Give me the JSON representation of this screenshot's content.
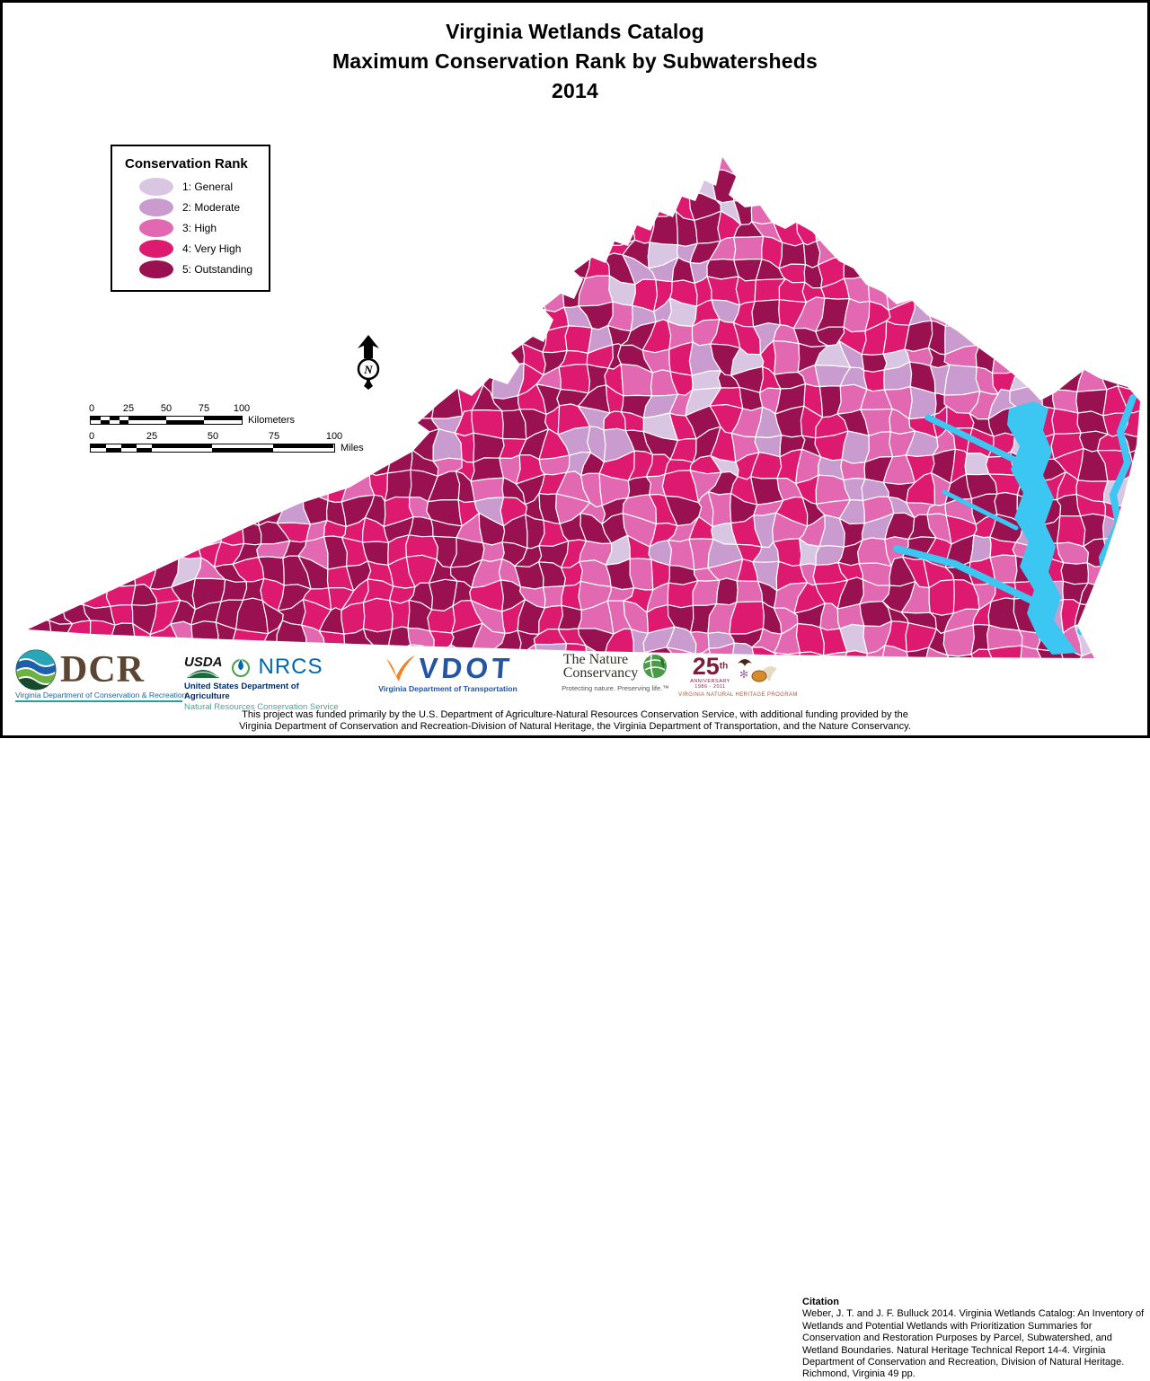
{
  "title": {
    "line1": "Virginia Wetlands Catalog",
    "line2": "Maximum Conservation Rank by Subwatersheds",
    "line3": "2014"
  },
  "legend": {
    "title": "Conservation Rank",
    "items": [
      {
        "rank": 1,
        "label": "1: General",
        "color": "#d9c6e3"
      },
      {
        "rank": 2,
        "label": "2: Moderate",
        "color": "#c99bce"
      },
      {
        "rank": 3,
        "label": "3: High",
        "color": "#e269b1"
      },
      {
        "rank": 4,
        "label": "4: Very High",
        "color": "#dd1a6f"
      },
      {
        "rank": 5,
        "label": "5: Outstanding",
        "color": "#991150"
      }
    ]
  },
  "map": {
    "water_color": "#3cc7f2",
    "boundary_color": "#ffffff"
  },
  "north_arrow": {
    "label": "N"
  },
  "scale_bars": {
    "kilometers": {
      "ticks": [
        "0",
        "25",
        "50",
        "75",
        "100"
      ],
      "unit": "Kilometers"
    },
    "miles": {
      "ticks": [
        "0",
        "25",
        "50",
        "75",
        "100"
      ],
      "unit": "Miles"
    }
  },
  "logos": {
    "dcr": {
      "acronym": "DCR",
      "subtitle": "Virginia Department of Conservation & Recreation",
      "brand_color": "#5c4632"
    },
    "usda": {
      "acronym": "USDA",
      "line1": "United States Department of Agriculture",
      "brand_color": "#1a6b3b"
    },
    "nrcs": {
      "acronym": "NRCS",
      "line2": "Natural Resources Conservation Service",
      "brand_color": "#0067b1"
    },
    "vdot": {
      "acronym": "VDOT",
      "subtitle": "Virginia Department of Transportation",
      "brand_color": "#2355a4",
      "swoosh_color": "#f4801f"
    },
    "tnc": {
      "name_line1": "The Nature",
      "name_line2": "Conservancy",
      "tagline": "Protecting nature. Preserving life.™",
      "brand_color": "#4a9b48"
    },
    "nhp": {
      "number": "25",
      "suffix": "th",
      "anniversary": "ANNIVERSARY",
      "years": "1986 - 2011",
      "program": "VIRGINIA NATURAL HERITAGE PROGRAM",
      "brand_color": "#7b1e3c"
    }
  },
  "citation": {
    "heading": "Citation",
    "text": "Weber, J. T. and J. F. Bulluck 2014. Virginia Wetlands Catalog: An Inventory of Wetlands and Potential Wetlands with Prioritization Summaries for Conservation and Restoration Purposes by Parcel, Subwatershed, and Wetland Boundaries. Natural Heritage Technical Report 14-4. Virginia Department of Conservation and Recreation, Division of Natural Heritage. Richmond, Virginia 49 pp."
  },
  "funding": {
    "line1": "This project was funded primarily by the U.S. Department of Agriculture-Natural Resources Conservation Service, with additional funding provided by the",
    "line2": "Virginia Department of Conservation and Recreation-Division of Natural Heritage, the Virginia Department of Transportation, and the Nature Conservancy."
  }
}
